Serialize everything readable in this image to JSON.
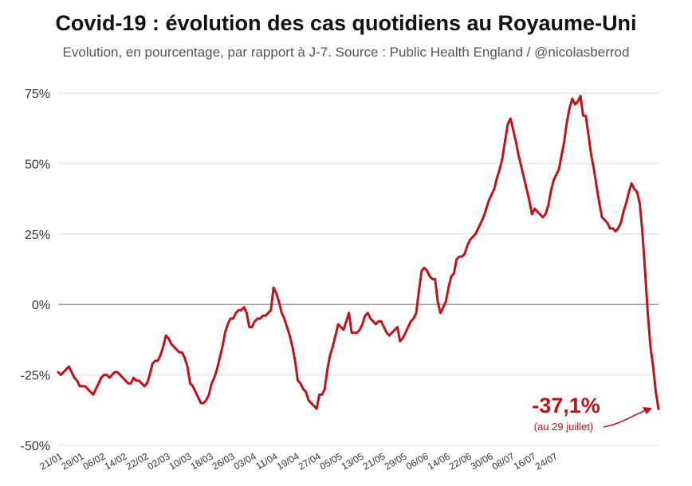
{
  "title": "Covid-19 : évolution des cas quotidiens au Royaume-Uni",
  "subtitle": "Evolution, en pourcentage, par rapport à J-7. Source : Public Health England / @nicolasberrod",
  "colors": {
    "line": "#c0121b",
    "grid": "#dddddd",
    "zero_line": "#777777",
    "text": "#333333"
  },
  "chart_data": {
    "type": "line",
    "title": "Covid-19 : évolution des cas quotidiens au Royaume-Uni",
    "subtitle": "Evolution, en pourcentage, par rapport à J-7. Source : Public Health England / @nicolasberrod",
    "xlabel": "",
    "ylabel": "",
    "ylim": [
      -50,
      75
    ],
    "y_ticks": [
      -50,
      -25,
      0,
      25,
      50,
      75
    ],
    "y_tick_labels": [
      "-50%",
      "-25%",
      "0%",
      "25%",
      "50%",
      "75%"
    ],
    "grid": "horizontal",
    "x_tick_labels": [
      "21/01",
      "29/01",
      "06/02",
      "14/02",
      "22/02",
      "02/03",
      "10/03",
      "18/03",
      "26/03",
      "03/04",
      "11/04",
      "19/04",
      "27/04",
      "05/05",
      "13/05",
      "21/05",
      "29/05",
      "06/06",
      "14/06",
      "22/06",
      "30/06",
      "08/07",
      "16/07",
      "24/07"
    ],
    "x_start": "21/01",
    "x_end": "29/07",
    "series": [
      {
        "values": [
          -24,
          -25,
          -24,
          -23,
          -22,
          -24,
          -26,
          -27,
          -29,
          -29,
          -29,
          -30,
          -31,
          -32,
          -30,
          -28,
          -26,
          -25,
          -25,
          -26,
          -25,
          -24,
          -24,
          -25,
          -26,
          -27,
          -28,
          -28,
          -26,
          -27,
          -27,
          -28,
          -29,
          -28,
          -25,
          -21,
          -20,
          -20,
          -18,
          -15,
          -11,
          -12,
          -14,
          -15,
          -16,
          -17,
          -17,
          -19,
          -22,
          -28,
          -29,
          -31,
          -33,
          -35,
          -35,
          -34,
          -32,
          -28,
          -26,
          -23,
          -19,
          -15,
          -10,
          -7,
          -5,
          -5,
          -3,
          -2,
          -2,
          -1,
          -3,
          -8,
          -8,
          -6,
          -5,
          -5,
          -4,
          -4,
          -3,
          -2,
          6,
          4,
          1,
          -3,
          -5,
          -8,
          -11,
          -15,
          -20,
          -27,
          -28,
          -30,
          -31,
          -34,
          -35,
          -36,
          -37,
          -32,
          -32,
          -30,
          -23,
          -18,
          -15,
          -11,
          -7,
          -8,
          -9,
          -6,
          -3,
          -10,
          -10,
          -10,
          -9,
          -7,
          -4,
          -3,
          -5,
          -6,
          -7,
          -6,
          -6,
          -8,
          -10,
          -11,
          -10,
          -9,
          -8,
          -13,
          -12,
          -10,
          -8,
          -6,
          -5,
          -3,
          5,
          12,
          13,
          12,
          10,
          9,
          9,
          1,
          -3,
          -1,
          1,
          6,
          10,
          11,
          16,
          17,
          17,
          18,
          21,
          23,
          24,
          25,
          27,
          29,
          31,
          34,
          37,
          39,
          41,
          45,
          48,
          52,
          58,
          64,
          66,
          62,
          58,
          53,
          49,
          45,
          41,
          37,
          32,
          34,
          33,
          32,
          31,
          32,
          35,
          40,
          44,
          46,
          48,
          53,
          58,
          65,
          70,
          73,
          71,
          72,
          74,
          67,
          67,
          60,
          53,
          48,
          42,
          36,
          31,
          30,
          29,
          27,
          27,
          26,
          27,
          29,
          33,
          36,
          40,
          43,
          41,
          40,
          36,
          26,
          12,
          -3,
          -15,
          -22,
          -31,
          -37.1
        ]
      }
    ],
    "annotation": {
      "value": "-37,1%",
      "note": "(au 29 juillet)"
    }
  }
}
